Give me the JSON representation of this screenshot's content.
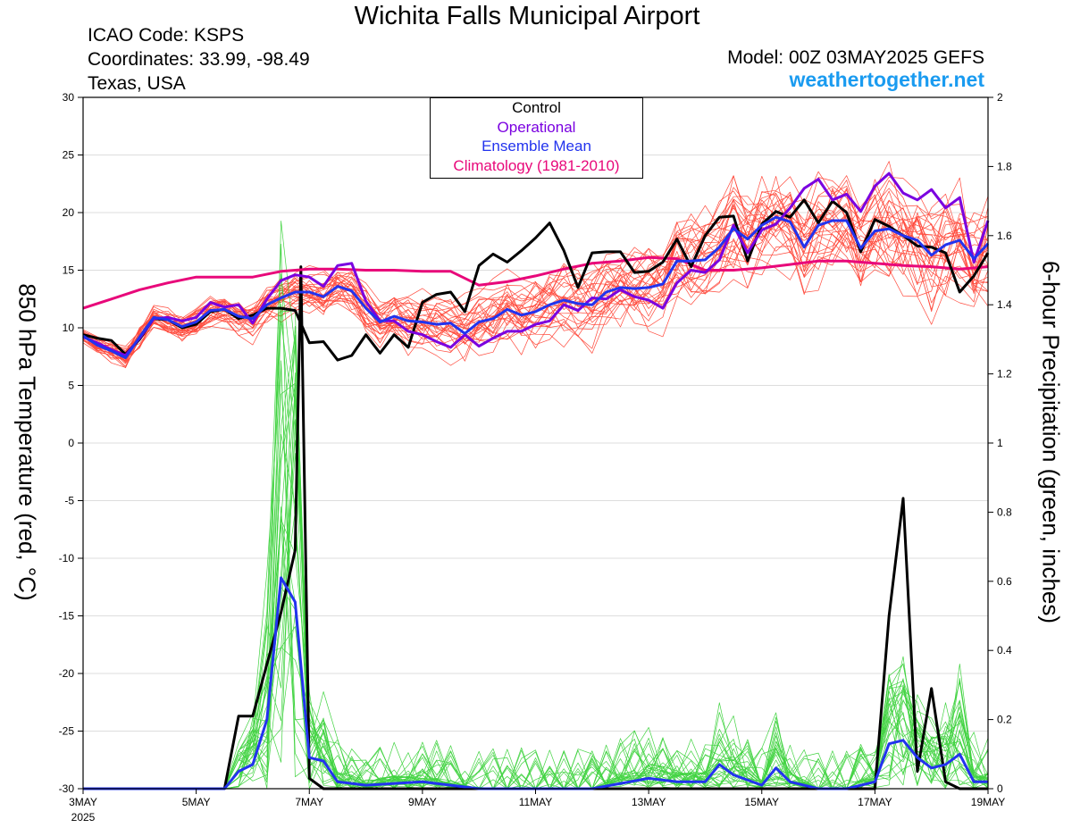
{
  "header": {
    "title": "Wichita Falls Municipal Airport",
    "icao": "ICAO Code: KSPS",
    "coordinates": "Coordinates: 33.99, -98.49",
    "region": "Texas, USA",
    "model": "Model: 00Z 03MAY2025 GEFS",
    "site": "weathertogether.net"
  },
  "colors": {
    "control": "#000000",
    "operational": "#7a00e0",
    "ensemble_mean": "#2233ee",
    "climatology": "#e8087a",
    "members_temp": "#ff2a1a",
    "members_precip": "#22cc22",
    "site": "#1a9bf0"
  },
  "chart_data": {
    "type": "line",
    "title": "Wichita Falls Municipal Airport",
    "ylabel_left": "850 hPa Temperature (red, °C)",
    "ylabel_right": "6-hour Precipitation (green, inches)",
    "x_unit": "days since 3 May 2025 00Z",
    "xlim": [
      0,
      16
    ],
    "ylim_left": [
      -30,
      30
    ],
    "ylim_right": [
      0,
      2
    ],
    "yticks_left": [
      30,
      25,
      20,
      15,
      10,
      5,
      0,
      -5,
      -10,
      -15,
      -20,
      -25,
      -30
    ],
    "yticks_right": [
      "2",
      "1.8",
      "1.6",
      "1.4",
      "1.2",
      "1",
      "0.8",
      "0.6",
      "0.4",
      "0.2",
      "0"
    ],
    "xticks": [
      {
        "x": 0,
        "label": "3MAY"
      },
      {
        "x": 2,
        "label": "5MAY"
      },
      {
        "x": 4,
        "label": "7MAY"
      },
      {
        "x": 6,
        "label": "9MAY"
      },
      {
        "x": 8,
        "label": "11MAY"
      },
      {
        "x": 10,
        "label": "13MAY"
      },
      {
        "x": 12,
        "label": "15MAY"
      },
      {
        "x": 14,
        "label": "17MAY"
      },
      {
        "x": 16,
        "label": "19MAY"
      }
    ],
    "year_label": "2025",
    "legend": [
      "Control",
      "Operational",
      "Ensemble Mean",
      "Climatology (1981-2010)"
    ],
    "grid": "horizontal",
    "temperature_series": [
      {
        "name": "Climatology (1981-2010)",
        "role": "climatology",
        "x": [
          0,
          0.5,
          1,
          1.5,
          2,
          2.5,
          3,
          3.5,
          4,
          4.5,
          5,
          5.5,
          6,
          6.5,
          7,
          7.5,
          8,
          8.5,
          9,
          9.5,
          10,
          10.5,
          11,
          11.5,
          12,
          12.5,
          13,
          13.5,
          14,
          14.5,
          15,
          15.5,
          16
        ],
        "values": [
          11.7,
          12.5,
          13.3,
          13.9,
          14.4,
          14.4,
          14.4,
          14.9,
          15.1,
          15.1,
          15.0,
          15.0,
          14.9,
          14.9,
          13.7,
          14.0,
          14.5,
          15.1,
          15.6,
          15.8,
          16.1,
          16.0,
          15.0,
          15.0,
          15.2,
          15.5,
          15.8,
          15.8,
          15.6,
          15.4,
          15.3,
          15.1,
          15.3
        ]
      },
      {
        "name": "Control",
        "role": "control",
        "x": [
          0,
          0.25,
          0.5,
          0.75,
          1,
          1.25,
          1.5,
          1.75,
          2,
          2.25,
          2.5,
          2.75,
          3,
          3.25,
          3.5,
          3.75,
          4,
          4.25,
          4.5,
          4.75,
          5,
          5.25,
          5.5,
          5.75,
          6,
          6.25,
          6.5,
          6.75,
          7,
          7.25,
          7.5,
          7.75,
          8,
          8.25,
          8.5,
          8.75,
          9,
          9.25,
          9.5,
          9.75,
          10,
          10.25,
          10.5,
          10.75,
          11,
          11.25,
          11.5,
          11.75,
          12,
          12.25,
          12.5,
          12.75,
          13,
          13.25,
          13.5,
          13.75,
          14,
          14.25,
          14.5,
          14.75,
          15,
          15.25,
          15.5,
          15.75,
          16
        ],
        "values": [
          9.4,
          9.1,
          8.9,
          7.7,
          9.0,
          10.8,
          10.7,
          10.0,
          10.3,
          11.4,
          11.6,
          10.8,
          11.1,
          11.7,
          11.7,
          11.5,
          8.7,
          8.8,
          7.2,
          7.6,
          9.4,
          7.8,
          9.4,
          8.3,
          12.2,
          12.9,
          13.1,
          11.4,
          15.4,
          16.4,
          15.7,
          16.7,
          17.8,
          19.1,
          16.7,
          13.5,
          16.5,
          16.6,
          16.6,
          14.8,
          14.9,
          15.7,
          17.7,
          15.3,
          18.0,
          19.6,
          19.7,
          15.8,
          19.0,
          20.1,
          19.6,
          21.1,
          19.1,
          21.0,
          20.0,
          16.6,
          19.4,
          18.8,
          18.0,
          17.1,
          17.0,
          16.5,
          13.1,
          14.5,
          16.5
        ]
      },
      {
        "name": "Operational",
        "role": "operational",
        "x": [
          0,
          0.25,
          0.5,
          0.75,
          1,
          1.25,
          1.5,
          1.75,
          2,
          2.25,
          2.5,
          2.75,
          3,
          3.25,
          3.5,
          3.75,
          4,
          4.25,
          4.5,
          4.75,
          5,
          5.25,
          5.5,
          5.75,
          6,
          6.25,
          6.5,
          6.75,
          7,
          7.25,
          7.5,
          7.75,
          8,
          8.25,
          8.5,
          8.75,
          9,
          9.25,
          9.5,
          9.75,
          10,
          10.25,
          10.5,
          10.75,
          11,
          11.25,
          11.5,
          11.75,
          12,
          12.25,
          12.5,
          12.75,
          13,
          13.25,
          13.5,
          13.75,
          14,
          14.25,
          14.5,
          14.75,
          15,
          15.25,
          15.5,
          15.75,
          16
        ],
        "values": [
          9.2,
          8.7,
          8.1,
          7.6,
          9.1,
          10.8,
          10.9,
          10.6,
          10.9,
          12.2,
          11.8,
          12.0,
          10.4,
          12.5,
          14.1,
          14.6,
          14.4,
          13.6,
          15.4,
          15.6,
          12.3,
          10.6,
          10.6,
          9.7,
          9.4,
          8.8,
          8.3,
          9.4,
          8.4,
          9.1,
          9.7,
          9.7,
          10.3,
          10.6,
          12.0,
          11.5,
          12.6,
          12.5,
          13.3,
          12.7,
          12.4,
          11.7,
          13.9,
          15.0,
          14.8,
          15.9,
          18.9,
          16.5,
          18.5,
          19.0,
          20.4,
          22.1,
          22.9,
          21.1,
          21.6,
          20.1,
          22.3,
          23.4,
          21.7,
          21.1,
          22.0,
          20.4,
          21.3,
          15.7,
          19.3
        ]
      },
      {
        "name": "Ensemble Mean",
        "role": "ensemble_mean",
        "x": [
          0,
          0.25,
          0.5,
          0.75,
          1,
          1.25,
          1.5,
          1.75,
          2,
          2.25,
          2.5,
          2.75,
          3,
          3.25,
          3.5,
          3.75,
          4,
          4.25,
          4.5,
          4.75,
          5,
          5.25,
          5.5,
          5.75,
          6,
          6.25,
          6.5,
          6.75,
          7,
          7.25,
          7.5,
          7.75,
          8,
          8.25,
          8.5,
          8.75,
          9,
          9.25,
          9.5,
          9.75,
          10,
          10.25,
          10.5,
          10.75,
          11,
          11.25,
          11.5,
          11.75,
          12,
          12.25,
          12.5,
          12.75,
          13,
          13.25,
          13.5,
          13.75,
          14,
          14.25,
          14.5,
          14.75,
          15,
          15.25,
          15.5,
          15.75,
          16
        ],
        "values": [
          9.3,
          8.5,
          8.0,
          7.4,
          9.2,
          10.9,
          10.7,
          10.1,
          10.5,
          11.5,
          11.6,
          11.0,
          10.8,
          12.0,
          12.6,
          13.1,
          13.1,
          12.7,
          13.6,
          13.2,
          11.7,
          10.5,
          11.0,
          10.6,
          10.5,
          10.3,
          10.4,
          9.5,
          10.5,
          10.8,
          11.6,
          11.1,
          11.4,
          12.0,
          12.4,
          12.1,
          12.0,
          13.1,
          13.5,
          13.4,
          13.5,
          13.8,
          15.8,
          15.8,
          15.9,
          17.0,
          18.6,
          17.7,
          18.9,
          19.6,
          19.2,
          17.0,
          18.9,
          19.3,
          19.3,
          16.9,
          18.4,
          18.6,
          18.0,
          17.6,
          16.3,
          17.2,
          17.6,
          16.0,
          17.3
        ]
      }
    ],
    "precipitation_series": [
      {
        "name": "Control",
        "role": "control",
        "x": [
          0,
          2.5,
          2.75,
          3,
          3.25,
          3.5,
          3.75,
          3.85,
          4,
          4.25,
          14,
          14.25,
          14.5,
          14.75,
          15,
          15.25,
          15.5,
          15.75,
          16
        ],
        "values": [
          0.0,
          0.0,
          0.21,
          0.21,
          0.36,
          0.51,
          0.69,
          1.51,
          0.03,
          0.0,
          0.0,
          0.5,
          0.84,
          0.05,
          0.29,
          0.02,
          0.0,
          0.0,
          0.0
        ]
      },
      {
        "name": "Ensemble Mean",
        "role": "ensemble_mean",
        "x": [
          0,
          2.5,
          2.75,
          3,
          3.25,
          3.5,
          3.75,
          4,
          4.25,
          4.5,
          5,
          6,
          7,
          8,
          9,
          10,
          10.5,
          11,
          11.25,
          11.5,
          12,
          12.25,
          12.5,
          13,
          13.5,
          14,
          14.25,
          14.5,
          14.75,
          15,
          15.25,
          15.5,
          15.75,
          16
        ],
        "values": [
          0.0,
          0.0,
          0.05,
          0.07,
          0.2,
          0.61,
          0.54,
          0.09,
          0.08,
          0.02,
          0.01,
          0.02,
          0.0,
          0.0,
          0.0,
          0.03,
          0.02,
          0.02,
          0.07,
          0.04,
          0.01,
          0.06,
          0.02,
          0.0,
          0.0,
          0.02,
          0.13,
          0.14,
          0.09,
          0.06,
          0.07,
          0.1,
          0.02,
          0.02
        ]
      }
    ],
    "member_count": 30
  }
}
